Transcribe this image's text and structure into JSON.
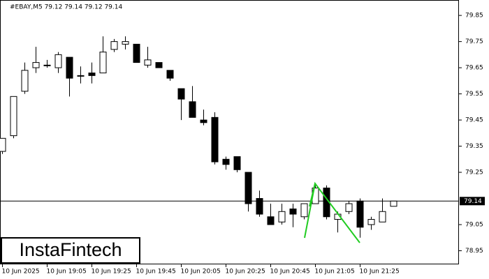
{
  "chart_data": {
    "type": "candlestick",
    "header": "#EBAY,M5  79.12 79.14 79.12 79.14",
    "watermark": "InstaFintech",
    "categories": [
      "10 Jun 2025",
      null,
      null,
      null,
      "10 Jun 19:05",
      null,
      null,
      null,
      "10 Jun 19:25",
      null,
      null,
      null,
      "10 Jun 19:45",
      null,
      null,
      null,
      "10 Jun 20:05",
      null,
      null,
      null,
      "10 Jun 20:25",
      null,
      null,
      null,
      "10 Jun 20:45",
      null,
      null,
      null,
      "10 Jun 21:05",
      null,
      null,
      null,
      "10 Jun 21:25",
      null,
      null,
      null
    ],
    "open": [
      79.33,
      79.39,
      79.56,
      79.65,
      79.66,
      79.65,
      79.69,
      79.62,
      79.63,
      79.63,
      79.72,
      79.74,
      79.74,
      79.66,
      79.67,
      79.64,
      79.57,
      79.52,
      79.45,
      79.46,
      79.3,
      79.31,
      79.25,
      79.15,
      79.08,
      79.06,
      79.11,
      79.08,
      79.13,
      79.19,
      79.07,
      79.1,
      79.14,
      79.05,
      79.06,
      79.12
    ],
    "high": [
      79.38,
      79.54,
      79.67,
      79.73,
      79.68,
      79.71,
      79.69,
      79.655,
      79.67,
      79.77,
      79.76,
      79.77,
      79.74,
      79.73,
      79.67,
      79.64,
      79.57,
      79.58,
      79.49,
      79.48,
      79.31,
      79.31,
      79.25,
      79.18,
      79.13,
      79.13,
      79.13,
      79.13,
      79.2,
      79.2,
      79.1,
      79.14,
      79.15,
      79.08,
      79.15,
      79.14
    ],
    "low": [
      79.32,
      79.38,
      79.55,
      79.63,
      79.65,
      79.63,
      79.54,
      79.59,
      79.59,
      79.63,
      79.71,
      79.72,
      79.67,
      79.65,
      79.65,
      79.6,
      79.45,
      79.46,
      79.43,
      79.28,
      79.26,
      79.25,
      79.1,
      79.08,
      79.05,
      79.05,
      79.04,
      79.07,
      79.13,
      79.07,
      79.02,
      79.09,
      79.0,
      79.03,
      79.06,
      79.12
    ],
    "close": [
      79.38,
      79.54,
      79.64,
      79.67,
      79.66,
      79.7,
      79.61,
      79.62,
      79.62,
      79.71,
      79.75,
      79.75,
      79.67,
      79.68,
      79.65,
      79.61,
      79.53,
      79.46,
      79.44,
      79.29,
      79.28,
      79.26,
      79.13,
      79.09,
      79.05,
      79.1,
      79.09,
      79.13,
      79.19,
      79.08,
      79.09,
      79.13,
      79.04,
      79.07,
      79.1,
      79.14
    ],
    "current_price": 79.14,
    "ylim": [
      78.898,
      79.909
    ],
    "yticks": [
      78.95,
      79.05,
      79.25,
      79.35,
      79.45,
      79.55,
      79.65,
      79.75,
      79.85
    ],
    "up_color": "#ffffff",
    "down_color": "#000000"
  }
}
